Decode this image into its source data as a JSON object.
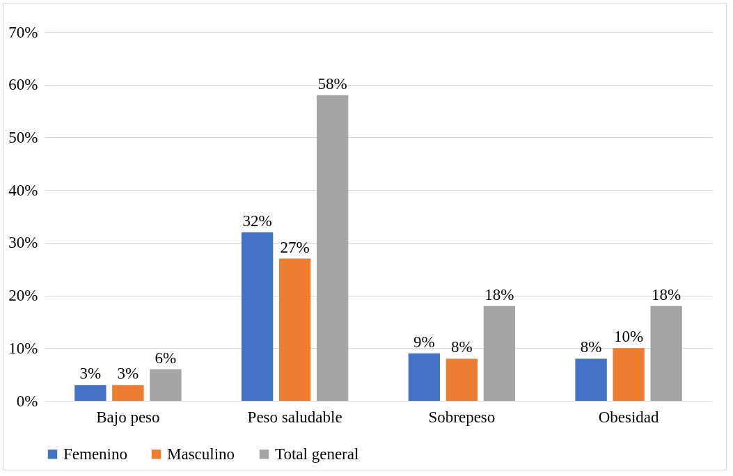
{
  "chart_data": {
    "type": "bar",
    "categories": [
      "Bajo peso",
      "Peso saludable",
      "Sobrepeso",
      "Obesidad"
    ],
    "series": [
      {
        "name": "Femenino",
        "color": "#4472c4",
        "values": [
          3,
          32,
          9,
          8
        ],
        "value_labels": [
          "3%",
          "32%",
          "9%",
          "8%"
        ]
      },
      {
        "name": "Masculino",
        "color": "#ed7d31",
        "values": [
          3,
          27,
          8,
          10
        ],
        "value_labels": [
          "3%",
          "27%",
          "8%",
          "10%"
        ]
      },
      {
        "name": "Total general",
        "color": "#a5a5a5",
        "values": [
          6,
          58,
          18,
          18
        ],
        "value_labels": [
          "6%",
          "58%",
          "18%",
          "18%"
        ]
      }
    ],
    "ylim": [
      0,
      70
    ],
    "yticks": [
      {
        "value": 0,
        "label": "0%"
      },
      {
        "value": 10,
        "label": "10%"
      },
      {
        "value": 20,
        "label": "20%"
      },
      {
        "value": 30,
        "label": "30%"
      },
      {
        "value": 40,
        "label": "40%"
      },
      {
        "value": 50,
        "label": "50%"
      },
      {
        "value": 60,
        "label": "60%"
      },
      {
        "value": 70,
        "label": "70%"
      }
    ],
    "grid": "y",
    "legend": "bottom"
  }
}
